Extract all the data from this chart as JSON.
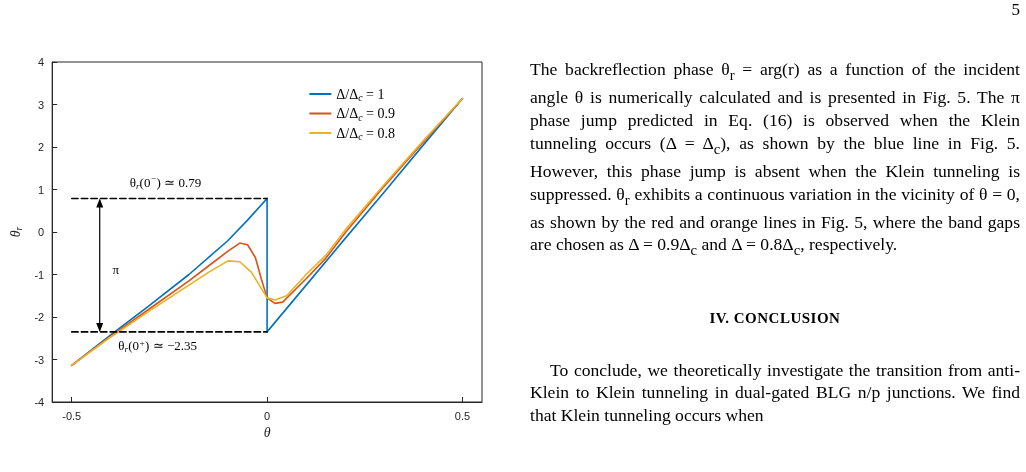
{
  "chart_data": {
    "type": "line",
    "xlabel": "θ",
    "ylabel": "θ$_{r}$",
    "xlim": [
      -0.55,
      0.55
    ],
    "xticks": [
      -0.5,
      0,
      0.5
    ],
    "ylim": [
      -4,
      4
    ],
    "yticks": [
      -4,
      -3,
      -2,
      -1,
      0,
      1,
      2,
      3,
      4
    ],
    "grid": false,
    "legend": "top right",
    "marker": "none",
    "line_style": "solid",
    "series": [
      {
        "name": "Δ/Δ$_{c}$ = 1",
        "color": "#0072bd",
        "x": [
          -0.5,
          -0.4,
          -0.3,
          -0.2,
          -0.1,
          -0.05,
          0,
          0,
          0.1,
          0.2,
          0.3,
          0.4,
          0.5
        ],
        "values": [
          -3.14,
          -2.42,
          -1.72,
          -1.0,
          -0.2,
          0.28,
          0.79,
          -2.35,
          -1.25,
          -0.15,
          0.94,
          2.05,
          3.14
        ]
      },
      {
        "name": "Δ/Δ$_{c}$ = 0.9",
        "color": "#d95319",
        "x": [
          -0.5,
          -0.4,
          -0.3,
          -0.2,
          -0.15,
          -0.1,
          -0.07,
          -0.05,
          -0.03,
          -0.015,
          0,
          0.02,
          0.04,
          0.1,
          0.15,
          0.2,
          0.3,
          0.4,
          0.5
        ],
        "values": [
          -3.14,
          -2.45,
          -1.8,
          -1.15,
          -0.8,
          -0.45,
          -0.26,
          -0.3,
          -0.6,
          -1.1,
          -1.55,
          -1.68,
          -1.65,
          -1.1,
          -0.62,
          -0.02,
          1.08,
          2.12,
          3.14
        ]
      },
      {
        "name": "Δ/Δ$_{c}$ = 0.8",
        "color": "#edb120",
        "x": [
          -0.5,
          -0.4,
          -0.3,
          -0.2,
          -0.15,
          -0.1,
          -0.07,
          -0.04,
          -0.02,
          0,
          0.02,
          0.05,
          0.1,
          0.15,
          0.2,
          0.3,
          0.4,
          0.5
        ],
        "values": [
          -3.14,
          -2.47,
          -1.85,
          -1.25,
          -0.95,
          -0.68,
          -0.7,
          -0.95,
          -1.25,
          -1.55,
          -1.6,
          -1.5,
          -1.0,
          -0.55,
          0.05,
          1.12,
          2.15,
          3.14
        ]
      },
      {
        "color": "#000000",
        "line_style": "dashed",
        "x": [
          -0.5,
          0
        ],
        "values": [
          0.79,
          0.79
        ]
      },
      {
        "color": "#000000",
        "line_style": "dashed",
        "x": [
          -0.5,
          0
        ],
        "values": [
          -2.35,
          -2.35
        ]
      }
    ],
    "annotations": [
      {
        "text": "θ$_{r}$(0$^{−}$) ≃ 0.79",
        "x": -0.26,
        "y": 0.79
      },
      {
        "text": "θ$_{r}$(0$^{+}$) ≃ −2.35",
        "x": -0.28,
        "y": -2.35
      },
      "π",
      "5",
      "The backreflection phase θ$_{r}$ = arg(r) as a function of the incident angle θ is numerically calculated and is presented in Fig. 5. The π phase jump predicted in Eq. (16) is observed when the Klein tunneling occurs (Δ = Δ$_{c}$), as shown by the blue line in Fig. 5. However, this phase jump is absent when the Klein tunneling is suppressed. θ$_{r}$ exhibits a continuous variation in the vicinity of θ = 0, as shown by the red and orange lines in Fig. 5, where the band gaps are chosen as Δ = 0.9Δ$_{c}$ and Δ = 0.8Δ$_{c}$, respectively.",
      "IV. CONCLUSION",
      "To conclude, we theoretically investigate the transition from anti-Klein to Klein tunneling in dual-gated BLG n/p junctions. We find that Klein tunneling occurs when"
    ]
  }
}
